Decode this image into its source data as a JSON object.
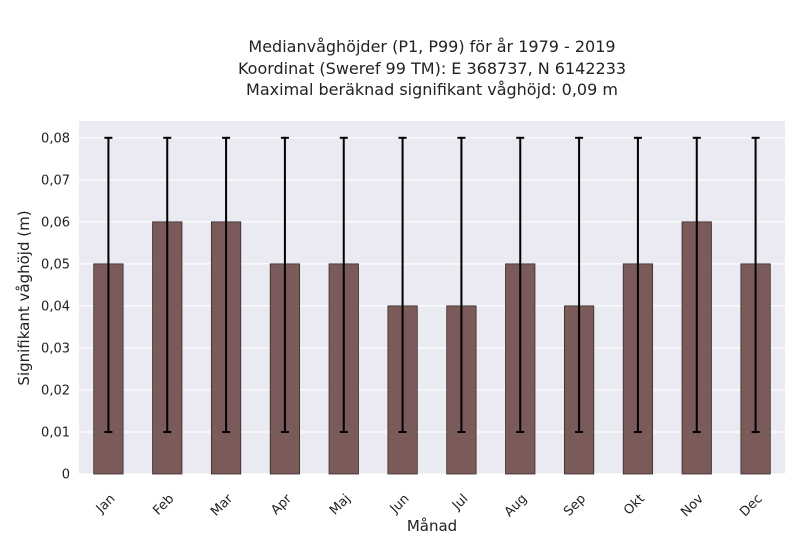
{
  "chart_data": {
    "type": "bar",
    "title_lines": [
      "Medianvåghöjder (P1, P99) för år 1979 - 2019",
      "Koordinat (Sweref 99 TM): E 368737, N 6142233",
      "Maximal beräknad signifikant våghöjd: 0,09 m"
    ],
    "xlabel": "Månad",
    "ylabel": "Signifikant våghöjd (m)",
    "categories": [
      "Jan",
      "Feb",
      "Mar",
      "Apr",
      "Maj",
      "Jun",
      "Jul",
      "Aug",
      "Sep",
      "Okt",
      "Nov",
      "Dec"
    ],
    "values": [
      0.05,
      0.06,
      0.06,
      0.05,
      0.05,
      0.04,
      0.04,
      0.05,
      0.04,
      0.05,
      0.06,
      0.05
    ],
    "error_low": [
      0.01,
      0.01,
      0.01,
      0.01,
      0.01,
      0.01,
      0.01,
      0.01,
      0.01,
      0.01,
      0.01,
      0.01
    ],
    "error_high": [
      0.08,
      0.08,
      0.08,
      0.08,
      0.08,
      0.08,
      0.08,
      0.08,
      0.08,
      0.08,
      0.08,
      0.08
    ],
    "ylim": [
      0,
      0.084
    ],
    "yticks": [
      0,
      0.01,
      0.02,
      0.03,
      0.04,
      0.05,
      0.06,
      0.07,
      0.08
    ],
    "ytick_labels": [
      "0",
      "0,01",
      "0,02",
      "0,03",
      "0,04",
      "0,05",
      "0,06",
      "0,07",
      "0,08"
    ],
    "grid": true,
    "colors": {
      "bar": "#7b5a5a",
      "bar_edge": "#3a2a2a",
      "error": "#000000",
      "plot_bg": "#eaeaf2",
      "grid": "#ffffff"
    }
  }
}
